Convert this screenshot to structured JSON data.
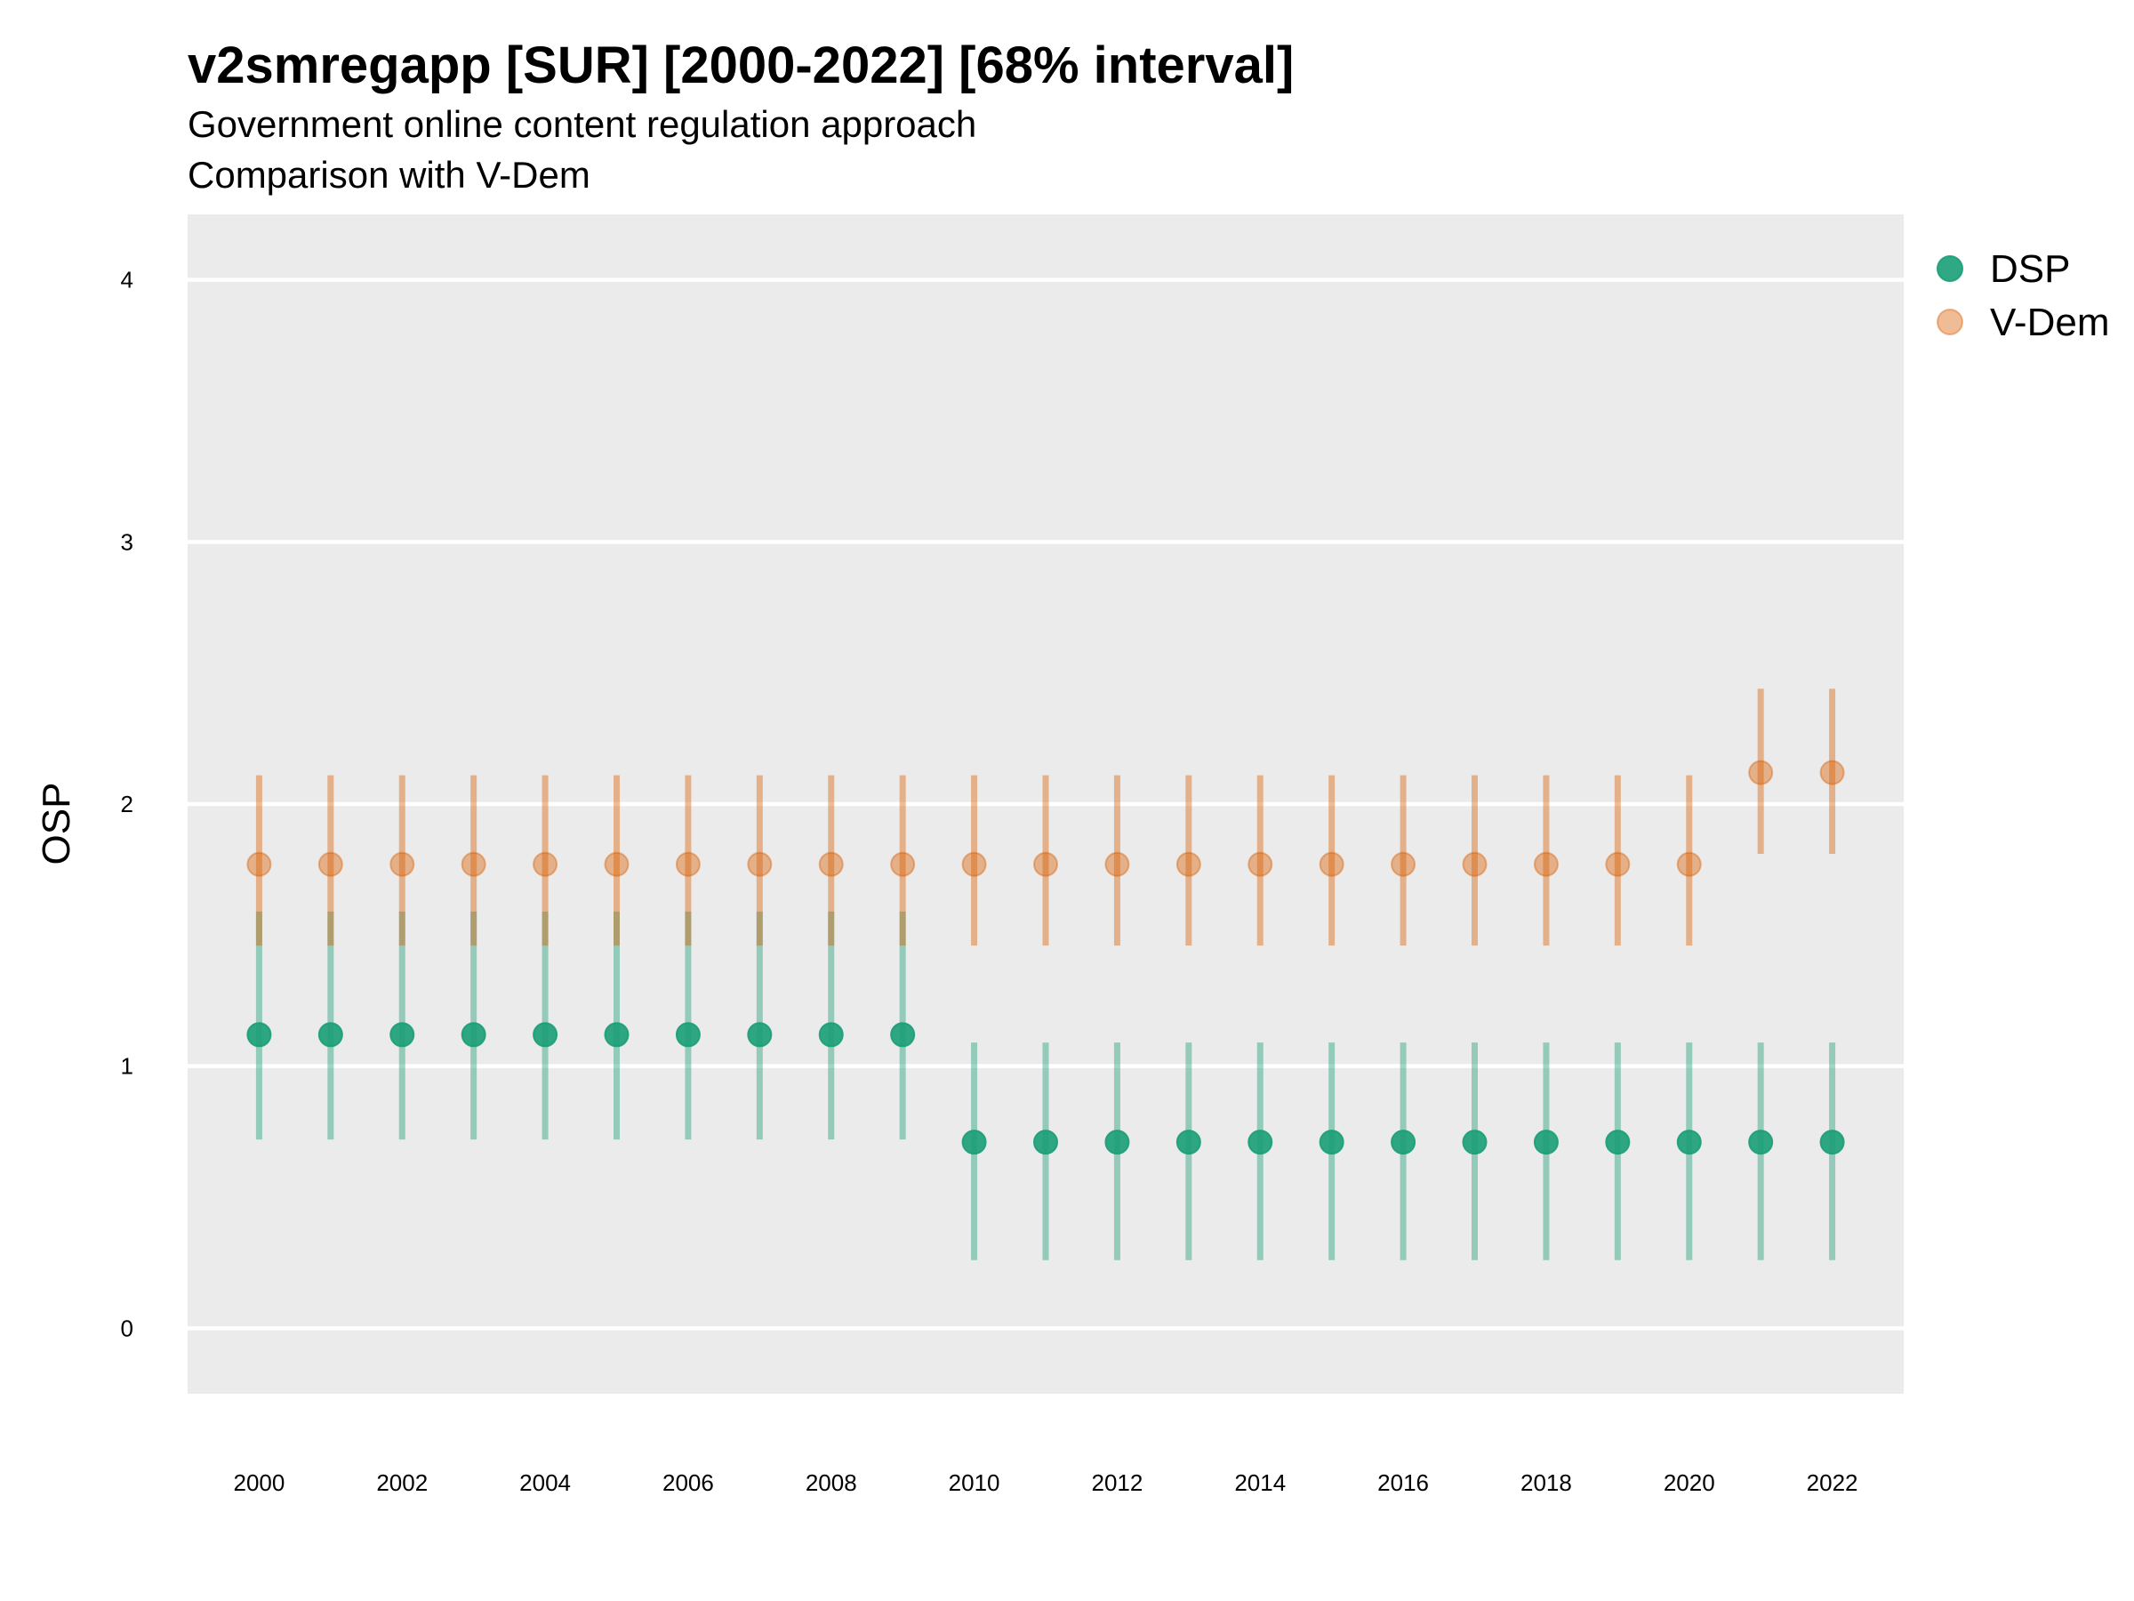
{
  "chart_data": {
    "type": "scatter",
    "title": "v2smregapp [SUR] [2000-2022] [68% interval]",
    "subtitle": [
      "Government online content regulation approach",
      "Comparison with V-Dem"
    ],
    "xlabel": "",
    "ylabel": "OSP",
    "xlim": [
      1999,
      2023
    ],
    "ylim": [
      -0.25,
      4.25
    ],
    "x_ticks": [
      "2000",
      "2002",
      "2004",
      "2006",
      "2008",
      "2010",
      "2012",
      "2014",
      "2016",
      "2018",
      "2020",
      "2022"
    ],
    "y_ticks": [
      "0",
      "1",
      "2",
      "3",
      "4"
    ],
    "grid": true,
    "legend_position": "right",
    "x": [
      2000,
      2001,
      2002,
      2003,
      2004,
      2005,
      2006,
      2007,
      2008,
      2009,
      2010,
      2011,
      2012,
      2013,
      2014,
      2015,
      2016,
      2017,
      2018,
      2019,
      2020,
      2021,
      2022
    ],
    "series": [
      {
        "name": "DSP",
        "color": "#1b9e77",
        "values": [
          1.12,
          1.12,
          1.12,
          1.12,
          1.12,
          1.12,
          1.12,
          1.12,
          1.12,
          1.12,
          0.71,
          0.71,
          0.71,
          0.71,
          0.71,
          0.71,
          0.71,
          0.71,
          0.71,
          0.71,
          0.71,
          0.71,
          0.71
        ],
        "lower": [
          0.72,
          0.72,
          0.72,
          0.72,
          0.72,
          0.72,
          0.72,
          0.72,
          0.72,
          0.72,
          0.26,
          0.26,
          0.26,
          0.26,
          0.26,
          0.26,
          0.26,
          0.26,
          0.26,
          0.26,
          0.26,
          0.26,
          0.26
        ],
        "upper": [
          1.59,
          1.59,
          1.59,
          1.59,
          1.59,
          1.59,
          1.59,
          1.59,
          1.59,
          1.59,
          1.09,
          1.09,
          1.09,
          1.09,
          1.09,
          1.09,
          1.09,
          1.09,
          1.09,
          1.09,
          1.09,
          1.09,
          1.09
        ]
      },
      {
        "name": "V-Dem",
        "color": "#d95f02",
        "values": [
          1.77,
          1.77,
          1.77,
          1.77,
          1.77,
          1.77,
          1.77,
          1.77,
          1.77,
          1.77,
          1.77,
          1.77,
          1.77,
          1.77,
          1.77,
          1.77,
          1.77,
          1.77,
          1.77,
          1.77,
          1.77,
          2.12,
          2.12
        ],
        "lower": [
          1.46,
          1.46,
          1.46,
          1.46,
          1.46,
          1.46,
          1.46,
          1.46,
          1.46,
          1.46,
          1.46,
          1.46,
          1.46,
          1.46,
          1.46,
          1.46,
          1.46,
          1.46,
          1.46,
          1.46,
          1.46,
          1.81,
          1.81
        ],
        "upper": [
          2.11,
          2.11,
          2.11,
          2.11,
          2.11,
          2.11,
          2.11,
          2.11,
          2.11,
          2.11,
          2.11,
          2.11,
          2.11,
          2.11,
          2.11,
          2.11,
          2.11,
          2.11,
          2.11,
          2.11,
          2.11,
          2.44,
          2.44
        ]
      }
    ]
  }
}
